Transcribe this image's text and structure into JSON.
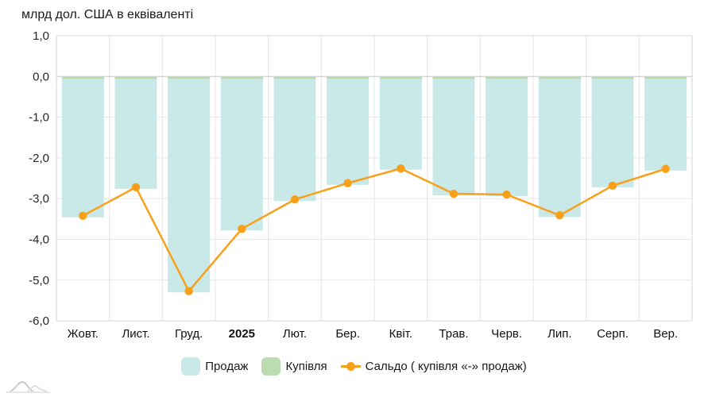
{
  "chart": {
    "title": "млрд дол. США в еквіваленті"
  },
  "chart_data": {
    "type": "bar",
    "combo": "bars + line overlay",
    "categories": [
      "Жовт.",
      "Лист.",
      "Груд.",
      "2025",
      "Лют.",
      "Бер.",
      "Квіт.",
      "Трав.",
      "Черв.",
      "Лип.",
      "Серп.",
      "Вер."
    ],
    "bold_category_index": 3,
    "series": [
      {
        "name": "Продаж",
        "type": "bar",
        "color": "#c8e9e7",
        "values": [
          -3.46,
          -2.76,
          -5.3,
          -3.78,
          -3.06,
          -2.66,
          -2.29,
          -2.92,
          -2.94,
          -3.45,
          -2.72,
          -2.31
        ]
      },
      {
        "name": "Купівля",
        "type": "bar",
        "color": "#badcb0",
        "values": [
          0.04,
          0.04,
          0.04,
          0.04,
          0.04,
          0.04,
          0.04,
          0.04,
          0.04,
          0.04,
          0.04,
          0.04
        ]
      },
      {
        "name": "Сальдо ( купівля «-» продаж)",
        "type": "line",
        "color": "#f9a01b",
        "values": [
          -3.42,
          -2.72,
          -5.27,
          -3.74,
          -3.02,
          -2.62,
          -2.26,
          -2.88,
          -2.9,
          -3.41,
          -2.68,
          -2.27
        ]
      }
    ],
    "ylabel": "млрд дол. США в еквіваленті",
    "ylim": [
      -6.0,
      1.0
    ],
    "ytick_step": 1.0,
    "yticks": [
      1.0,
      0.0,
      -1.0,
      -2.0,
      -3.0,
      -4.0,
      -5.0,
      -6.0
    ],
    "ytick_labels": [
      "1,0",
      "0,0",
      "-1,0",
      "-2,0",
      "-3,0",
      "-4,0",
      "-5,0",
      "-6,0"
    ],
    "grid": "on",
    "legend_position": "bottom"
  },
  "legend": {
    "items": [
      {
        "label": "Продаж",
        "color": "#c8e9e7",
        "marker": "square"
      },
      {
        "label": "Купівля",
        "color": "#badcb0",
        "marker": "square"
      },
      {
        "label": "Сальдо ( купівля «-» продаж)",
        "color": "#f9a01b",
        "marker": "line-dot"
      }
    ]
  },
  "colors": {
    "prodazh": "#c8e9e7",
    "kupivlia": "#badcb0",
    "saldo": "#f9a01b",
    "gridline": "#e7e7e7",
    "zero_line": "#c6c6c6",
    "plot_border": "#d6d6d6",
    "tick_text": "#262626",
    "watermark": "#d2d2d2"
  }
}
